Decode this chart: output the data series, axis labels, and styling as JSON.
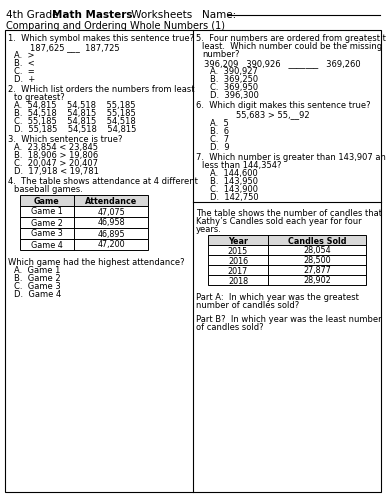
{
  "bg_color": "#ffffff",
  "title_prefix": "4th Grade ",
  "title_bold": "Math Masters",
  "title_suffix": " Worksheets   Name: ",
  "subtitle": "Comparing and Ordering Whole Numbers (1)",
  "game_table_headers": [
    "Game",
    "Attendance"
  ],
  "game_table_rows": [
    [
      "Game 1",
      "47,075"
    ],
    [
      "Game 2",
      "46,958"
    ],
    [
      "Game 3",
      "46,895"
    ],
    [
      "Game 4",
      "47,200"
    ]
  ],
  "candles_table_headers": [
    "Year",
    "Candles Sold"
  ],
  "candles_table_rows": [
    [
      "2015",
      "28,054"
    ],
    [
      "2016",
      "28,500"
    ],
    [
      "2017",
      "27,877"
    ],
    [
      "2018",
      "28,902"
    ]
  ]
}
